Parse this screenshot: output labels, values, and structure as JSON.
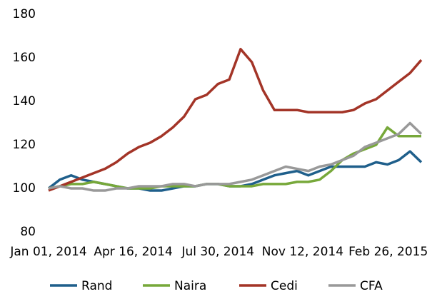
{
  "chart_data": {
    "type": "line",
    "x": [
      "2014-01-01",
      "2014-01-15",
      "2014-01-29",
      "2014-02-12",
      "2014-02-26",
      "2014-03-12",
      "2014-03-26",
      "2014-04-09",
      "2014-04-23",
      "2014-05-07",
      "2014-05-21",
      "2014-06-04",
      "2014-06-18",
      "2014-07-02",
      "2014-07-16",
      "2014-07-30",
      "2014-08-13",
      "2014-08-27",
      "2014-09-10",
      "2014-09-24",
      "2014-10-08",
      "2014-10-22",
      "2014-11-05",
      "2014-11-19",
      "2014-12-03",
      "2014-12-17",
      "2014-12-31",
      "2015-01-14",
      "2015-01-28",
      "2015-02-11",
      "2015-02-25",
      "2015-03-11",
      "2015-03-25",
      "2015-04-08"
    ],
    "series": [
      {
        "name": "Rand",
        "color": "#1f5f8b",
        "values": [
          100,
          104,
          106,
          104,
          103,
          102,
          101,
          100,
          100,
          99,
          99,
          100,
          101,
          101,
          102,
          102,
          101,
          101,
          102,
          104,
          106,
          107,
          108,
          106,
          108,
          110,
          110,
          110,
          110,
          112,
          111,
          113,
          117,
          112
        ]
      },
      {
        "name": "Naira",
        "color": "#77a83a",
        "values": [
          100,
          101,
          102,
          102,
          103,
          102,
          101,
          100,
          100,
          100,
          101,
          101,
          101,
          101,
          102,
          102,
          101,
          101,
          101,
          102,
          102,
          102,
          103,
          103,
          104,
          108,
          113,
          116,
          118,
          120,
          128,
          124,
          124,
          124
        ]
      },
      {
        "name": "Cedi",
        "color": "#a33427",
        "values": [
          99,
          101,
          103,
          105,
          107,
          109,
          112,
          116,
          119,
          121,
          124,
          128,
          133,
          141,
          143,
          148,
          150,
          164,
          158,
          145,
          136,
          136,
          136,
          135,
          135,
          135,
          135,
          136,
          139,
          141,
          145,
          149,
          153,
          159
        ]
      },
      {
        "name": "CFA",
        "color": "#999999",
        "values": [
          100,
          101,
          100,
          100,
          99,
          99,
          100,
          100,
          101,
          101,
          101,
          102,
          102,
          101,
          102,
          102,
          102,
          103,
          104,
          106,
          108,
          110,
          109,
          108,
          110,
          111,
          113,
          115,
          119,
          121,
          123,
          125,
          130,
          125
        ]
      }
    ],
    "ylim": [
      80,
      180
    ],
    "yticks": [
      80,
      100,
      120,
      140,
      160,
      180
    ],
    "xlim": [
      "2014-01-01",
      "2015-04-08"
    ],
    "xticks": [
      {
        "value": "2014-01-01",
        "label": "Jan 01, 2014"
      },
      {
        "value": "2014-04-16",
        "label": "Apr 16, 2014"
      },
      {
        "value": "2014-07-30",
        "label": "Jul 30, 2014"
      },
      {
        "value": "2014-11-12",
        "label": "Nov 12, 2014"
      },
      {
        "value": "2015-02-26",
        "label": "Feb 26, 2015"
      }
    ],
    "grid": false,
    "legend": "bottom"
  }
}
